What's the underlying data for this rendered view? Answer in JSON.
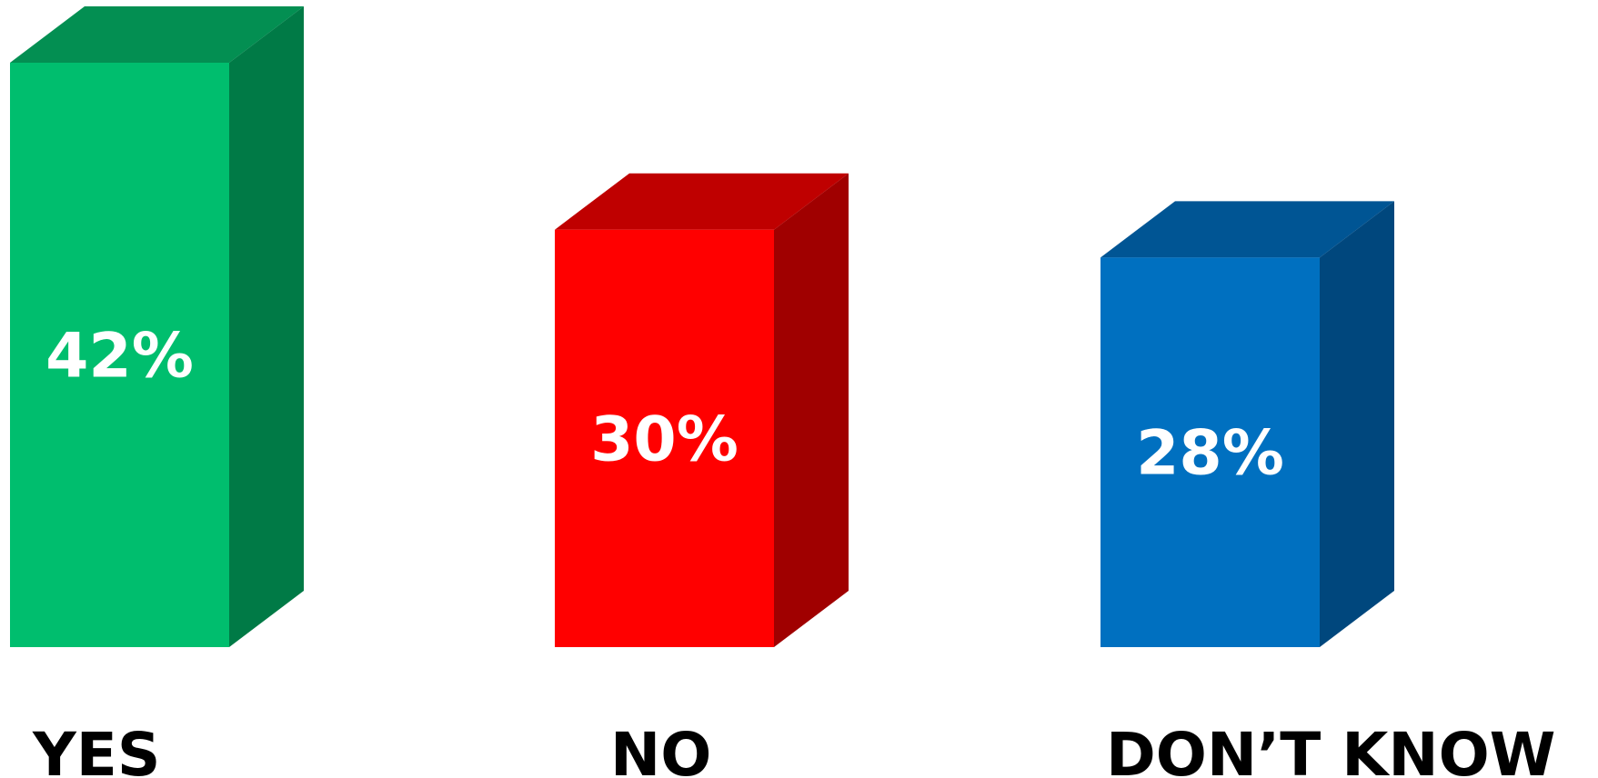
{
  "chart_data": {
    "type": "bar",
    "style": "3d",
    "categories": [
      "YES",
      "NO",
      "DON’T KNOW"
    ],
    "values": [
      42,
      30,
      28
    ],
    "value_labels": [
      "42%",
      "30%",
      "28%"
    ],
    "unit": "%",
    "colors": [
      {
        "front": "#00BE6E",
        "top": "#038F52",
        "side": "#007A46"
      },
      {
        "front": "#FF0000",
        "top": "#BF0000",
        "side": "#A00000"
      },
      {
        "front": "#0070C0",
        "top": "#005594",
        "side": "#00477D"
      }
    ],
    "title": "",
    "xlabel": "",
    "ylabel": "",
    "ylim": [
      0,
      42
    ],
    "grid": false,
    "legend": "none"
  }
}
